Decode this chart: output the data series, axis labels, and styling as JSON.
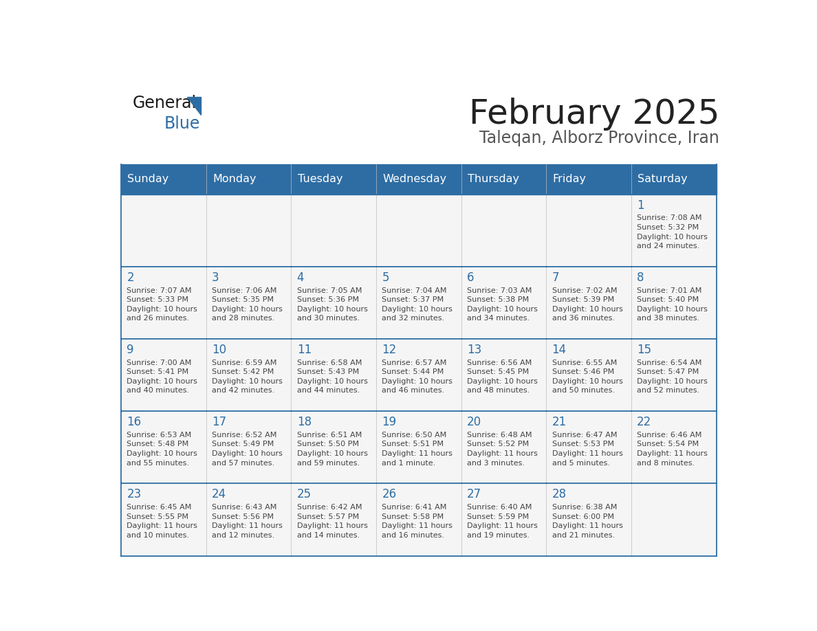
{
  "title": "February 2025",
  "subtitle": "Taleqan, Alborz Province, Iran",
  "header_bg": "#2E6DA4",
  "header_text_color": "#FFFFFF",
  "day_headers": [
    "Sunday",
    "Monday",
    "Tuesday",
    "Wednesday",
    "Thursday",
    "Friday",
    "Saturday"
  ],
  "title_color": "#222222",
  "subtitle_color": "#555555",
  "day_num_color": "#2E6DA4",
  "info_color": "#444444",
  "grid_color": "#2E6DA4",
  "weeks": [
    [
      {
        "day": null,
        "info": ""
      },
      {
        "day": null,
        "info": ""
      },
      {
        "day": null,
        "info": ""
      },
      {
        "day": null,
        "info": ""
      },
      {
        "day": null,
        "info": ""
      },
      {
        "day": null,
        "info": ""
      },
      {
        "day": 1,
        "info": "Sunrise: 7:08 AM\nSunset: 5:32 PM\nDaylight: 10 hours\nand 24 minutes."
      }
    ],
    [
      {
        "day": 2,
        "info": "Sunrise: 7:07 AM\nSunset: 5:33 PM\nDaylight: 10 hours\nand 26 minutes."
      },
      {
        "day": 3,
        "info": "Sunrise: 7:06 AM\nSunset: 5:35 PM\nDaylight: 10 hours\nand 28 minutes."
      },
      {
        "day": 4,
        "info": "Sunrise: 7:05 AM\nSunset: 5:36 PM\nDaylight: 10 hours\nand 30 minutes."
      },
      {
        "day": 5,
        "info": "Sunrise: 7:04 AM\nSunset: 5:37 PM\nDaylight: 10 hours\nand 32 minutes."
      },
      {
        "day": 6,
        "info": "Sunrise: 7:03 AM\nSunset: 5:38 PM\nDaylight: 10 hours\nand 34 minutes."
      },
      {
        "day": 7,
        "info": "Sunrise: 7:02 AM\nSunset: 5:39 PM\nDaylight: 10 hours\nand 36 minutes."
      },
      {
        "day": 8,
        "info": "Sunrise: 7:01 AM\nSunset: 5:40 PM\nDaylight: 10 hours\nand 38 minutes."
      }
    ],
    [
      {
        "day": 9,
        "info": "Sunrise: 7:00 AM\nSunset: 5:41 PM\nDaylight: 10 hours\nand 40 minutes."
      },
      {
        "day": 10,
        "info": "Sunrise: 6:59 AM\nSunset: 5:42 PM\nDaylight: 10 hours\nand 42 minutes."
      },
      {
        "day": 11,
        "info": "Sunrise: 6:58 AM\nSunset: 5:43 PM\nDaylight: 10 hours\nand 44 minutes."
      },
      {
        "day": 12,
        "info": "Sunrise: 6:57 AM\nSunset: 5:44 PM\nDaylight: 10 hours\nand 46 minutes."
      },
      {
        "day": 13,
        "info": "Sunrise: 6:56 AM\nSunset: 5:45 PM\nDaylight: 10 hours\nand 48 minutes."
      },
      {
        "day": 14,
        "info": "Sunrise: 6:55 AM\nSunset: 5:46 PM\nDaylight: 10 hours\nand 50 minutes."
      },
      {
        "day": 15,
        "info": "Sunrise: 6:54 AM\nSunset: 5:47 PM\nDaylight: 10 hours\nand 52 minutes."
      }
    ],
    [
      {
        "day": 16,
        "info": "Sunrise: 6:53 AM\nSunset: 5:48 PM\nDaylight: 10 hours\nand 55 minutes."
      },
      {
        "day": 17,
        "info": "Sunrise: 6:52 AM\nSunset: 5:49 PM\nDaylight: 10 hours\nand 57 minutes."
      },
      {
        "day": 18,
        "info": "Sunrise: 6:51 AM\nSunset: 5:50 PM\nDaylight: 10 hours\nand 59 minutes."
      },
      {
        "day": 19,
        "info": "Sunrise: 6:50 AM\nSunset: 5:51 PM\nDaylight: 11 hours\nand 1 minute."
      },
      {
        "day": 20,
        "info": "Sunrise: 6:48 AM\nSunset: 5:52 PM\nDaylight: 11 hours\nand 3 minutes."
      },
      {
        "day": 21,
        "info": "Sunrise: 6:47 AM\nSunset: 5:53 PM\nDaylight: 11 hours\nand 5 minutes."
      },
      {
        "day": 22,
        "info": "Sunrise: 6:46 AM\nSunset: 5:54 PM\nDaylight: 11 hours\nand 8 minutes."
      }
    ],
    [
      {
        "day": 23,
        "info": "Sunrise: 6:45 AM\nSunset: 5:55 PM\nDaylight: 11 hours\nand 10 minutes."
      },
      {
        "day": 24,
        "info": "Sunrise: 6:43 AM\nSunset: 5:56 PM\nDaylight: 11 hours\nand 12 minutes."
      },
      {
        "day": 25,
        "info": "Sunrise: 6:42 AM\nSunset: 5:57 PM\nDaylight: 11 hours\nand 14 minutes."
      },
      {
        "day": 26,
        "info": "Sunrise: 6:41 AM\nSunset: 5:58 PM\nDaylight: 11 hours\nand 16 minutes."
      },
      {
        "day": 27,
        "info": "Sunrise: 6:40 AM\nSunset: 5:59 PM\nDaylight: 11 hours\nand 19 minutes."
      },
      {
        "day": 28,
        "info": "Sunrise: 6:38 AM\nSunset: 6:00 PM\nDaylight: 11 hours\nand 21 minutes."
      },
      {
        "day": null,
        "info": ""
      }
    ]
  ]
}
